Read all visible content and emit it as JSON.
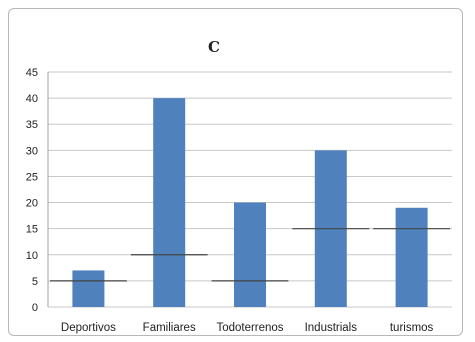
{
  "chart_data": {
    "type": "bar",
    "title": "C",
    "categories": [
      "Deportivos",
      "Familiares",
      "Todoterrenos",
      "Industrials",
      "turismos"
    ],
    "values": [
      7,
      40,
      20,
      30,
      19
    ],
    "reference_values": [
      5,
      10,
      5,
      15,
      15
    ],
    "ylim": [
      0,
      45
    ],
    "yticks": [
      "0",
      "5",
      "10",
      "15",
      "20",
      "25",
      "30",
      "35",
      "40",
      "45"
    ],
    "grid": true,
    "legend": "none",
    "bar_color": "#4f81bd",
    "reference_line_color": "#444444",
    "grid_color": "#c8c8c8"
  }
}
